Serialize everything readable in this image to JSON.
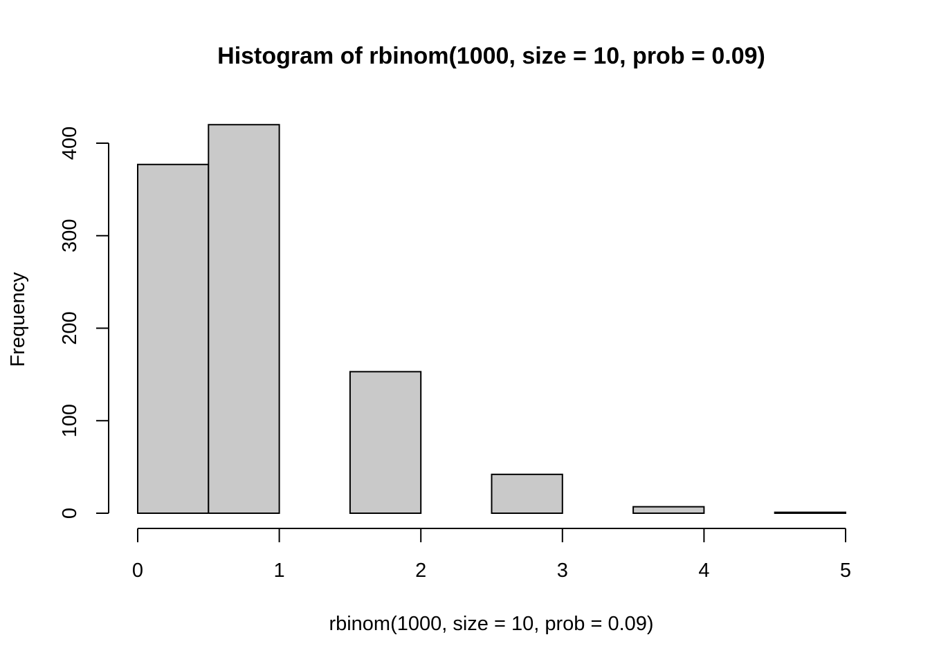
{
  "chart_data": {
    "type": "bar",
    "title": "Histogram of rbinom(1000, size = 10, prob = 0.09)",
    "xlabel": "rbinom(1000, size = 10, prob = 0.09)",
    "ylabel": "Frequency",
    "bins": [
      {
        "start": 0.0,
        "end": 0.5,
        "value": 377
      },
      {
        "start": 0.5,
        "end": 1.0,
        "value": 420
      },
      {
        "start": 1.0,
        "end": 1.5,
        "value": 0
      },
      {
        "start": 1.5,
        "end": 2.0,
        "value": 153
      },
      {
        "start": 2.0,
        "end": 2.5,
        "value": 0
      },
      {
        "start": 2.5,
        "end": 3.0,
        "value": 42
      },
      {
        "start": 3.0,
        "end": 3.5,
        "value": 0
      },
      {
        "start": 3.5,
        "end": 4.0,
        "value": 7
      },
      {
        "start": 4.0,
        "end": 4.5,
        "value": 0
      },
      {
        "start": 4.5,
        "end": 5.0,
        "value": 1
      }
    ],
    "xlim": [
      0,
      5
    ],
    "ylim": [
      0,
      400
    ],
    "x_ticks": [
      0,
      1,
      2,
      3,
      4,
      5
    ],
    "y_ticks": [
      0,
      100,
      200,
      300,
      400
    ],
    "x_tick_labels": [
      "0",
      "1",
      "2",
      "3",
      "4",
      "5"
    ],
    "y_tick_labels": [
      "0",
      "100",
      "200",
      "300",
      "400"
    ],
    "grid": false,
    "bar_fill": "#c9c9c9",
    "bar_stroke": "#000000"
  }
}
